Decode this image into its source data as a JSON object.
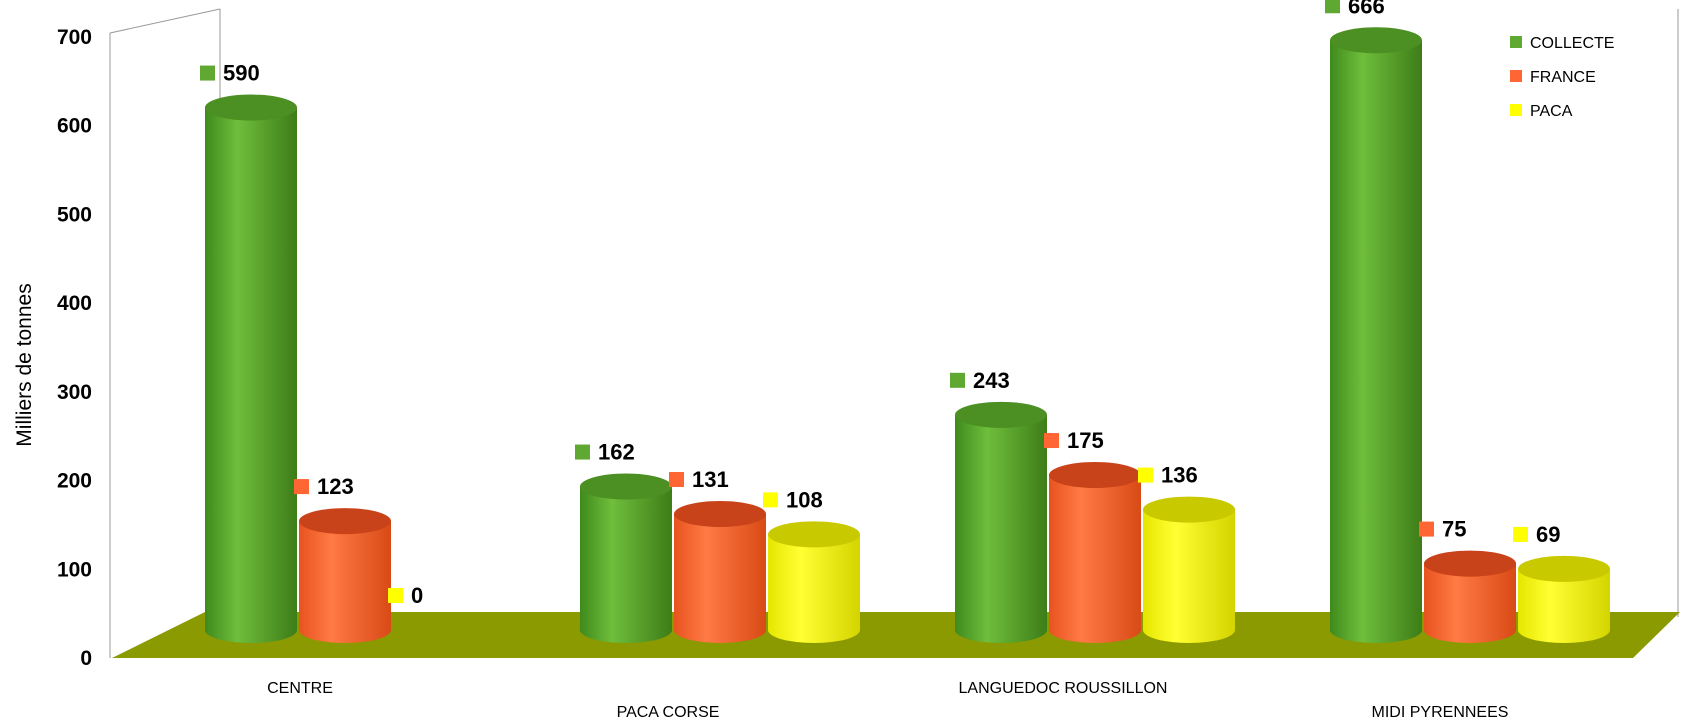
{
  "chart_data": {
    "type": "bar",
    "ylabel": "Milliers de tonnes",
    "xlabel": "",
    "title": "",
    "ylim": [
      0,
      700
    ],
    "yticks": [
      0,
      100,
      200,
      300,
      400,
      500,
      600,
      700
    ],
    "categories": [
      "CENTRE",
      "PACA CORSE",
      "LANGUEDOC ROUSSILLON",
      "MIDI PYRENNEES"
    ],
    "series": [
      {
        "name": "COLLECTE",
        "color": "#5fa832",
        "values": [
          590,
          162,
          243,
          666
        ]
      },
      {
        "name": "FRANCE",
        "color": "#ff6633",
        "values": [
          123,
          131,
          175,
          75
        ]
      },
      {
        "name": "PACA",
        "color": "#ffff00",
        "values": [
          0,
          108,
          136,
          69
        ]
      }
    ],
    "legend_position": "top-right",
    "floor_color": "#8a9a00",
    "grid": false
  }
}
